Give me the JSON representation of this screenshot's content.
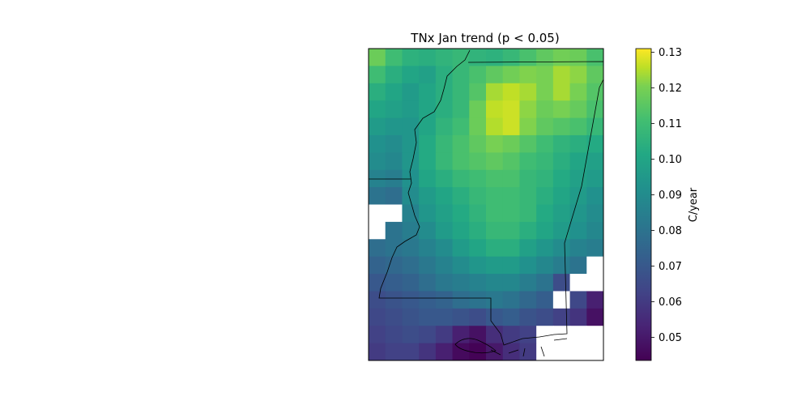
{
  "title": "TNx Jan trend (p < 0.05)",
  "colorbar": {
    "label": "C/year",
    "range": [
      0.0435,
      0.131
    ],
    "ticks": [
      "0.05",
      "0.06",
      "0.07",
      "0.08",
      "0.09",
      "0.10",
      "0.11",
      "0.12",
      "0.13"
    ],
    "colormap": "viridis"
  },
  "map": {
    "grid": {
      "rows": 18,
      "cols": 14
    },
    "colors": {
      "missing": "#ffffff",
      "border": "#000000"
    },
    "cell_values": [
      [
        0.118,
        0.11,
        0.105,
        0.104,
        0.106,
        0.108,
        0.106,
        0.105,
        0.108,
        0.112,
        0.116,
        0.119,
        0.118,
        0.112
      ],
      [
        0.11,
        0.104,
        0.1,
        0.098,
        0.104,
        0.108,
        0.112,
        0.116,
        0.119,
        0.121,
        0.12,
        0.124,
        0.122,
        0.116
      ],
      [
        0.104,
        0.1,
        0.096,
        0.1,
        0.104,
        0.108,
        0.114,
        0.124,
        0.126,
        0.124,
        0.12,
        0.124,
        0.12,
        0.114
      ],
      [
        0.1,
        0.098,
        0.096,
        0.1,
        0.104,
        0.108,
        0.118,
        0.126,
        0.127,
        0.122,
        0.118,
        0.12,
        0.117,
        0.112
      ],
      [
        0.096,
        0.094,
        0.094,
        0.1,
        0.106,
        0.11,
        0.118,
        0.125,
        0.127,
        0.121,
        0.116,
        0.114,
        0.112,
        0.108
      ],
      [
        0.092,
        0.09,
        0.094,
        0.102,
        0.108,
        0.112,
        0.116,
        0.12,
        0.118,
        0.114,
        0.11,
        0.106,
        0.104,
        0.102
      ],
      [
        0.09,
        0.088,
        0.094,
        0.102,
        0.108,
        0.112,
        0.114,
        0.116,
        0.114,
        0.11,
        0.108,
        0.104,
        0.1,
        0.098
      ],
      [
        0.086,
        0.084,
        0.092,
        0.1,
        0.104,
        0.108,
        0.11,
        0.112,
        0.112,
        0.108,
        0.106,
        0.102,
        0.098,
        0.096
      ],
      [
        0.08,
        0.078,
        0.09,
        0.096,
        0.1,
        0.104,
        0.108,
        0.11,
        0.11,
        0.108,
        0.104,
        0.1,
        0.096,
        0.092
      ],
      [
        null,
        null,
        0.086,
        0.094,
        0.098,
        0.102,
        0.106,
        0.11,
        0.11,
        0.108,
        0.102,
        0.098,
        0.094,
        0.09
      ],
      [
        null,
        0.08,
        0.084,
        0.09,
        0.096,
        0.1,
        0.104,
        0.108,
        0.108,
        0.104,
        0.1,
        0.096,
        0.092,
        0.088
      ],
      [
        0.078,
        0.08,
        0.082,
        0.086,
        0.09,
        0.096,
        0.1,
        0.104,
        0.104,
        0.098,
        0.094,
        0.09,
        0.086,
        0.084
      ],
      [
        0.074,
        0.076,
        0.078,
        0.082,
        0.086,
        0.09,
        0.094,
        0.096,
        0.096,
        0.092,
        0.088,
        0.084,
        0.08,
        null
      ],
      [
        0.07,
        0.072,
        0.074,
        0.078,
        0.082,
        0.084,
        0.086,
        0.088,
        0.088,
        0.084,
        0.08,
        0.066,
        null,
        null
      ],
      [
        0.066,
        0.068,
        0.07,
        0.072,
        0.074,
        0.078,
        0.08,
        0.082,
        0.08,
        0.076,
        0.072,
        null,
        0.064,
        0.052
      ],
      [
        0.064,
        0.066,
        0.068,
        0.07,
        0.07,
        0.068,
        0.066,
        0.07,
        0.072,
        0.068,
        0.066,
        0.062,
        0.058,
        0.048
      ],
      [
        0.062,
        0.064,
        0.066,
        0.064,
        0.06,
        0.052,
        0.048,
        0.056,
        0.06,
        0.062,
        null,
        null,
        null,
        null
      ],
      [
        0.06,
        0.062,
        0.062,
        0.058,
        0.052,
        0.046,
        0.044,
        0.05,
        0.056,
        0.06,
        null,
        null,
        null,
        null
      ]
    ]
  }
}
